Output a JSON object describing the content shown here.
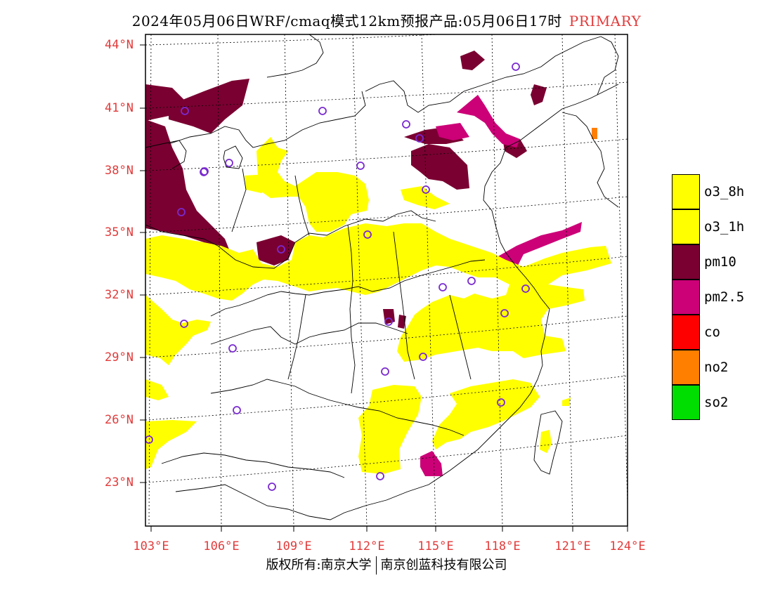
{
  "header": {
    "title": "2024年05月06日WRF/cmaq模式12km预报产品:05月06日17时",
    "tag": "PRIMARY"
  },
  "map": {
    "lat_labels": [
      "44°N",
      "41°N",
      "38°N",
      "35°N",
      "32°N",
      "29°N",
      "26°N",
      "23°N"
    ],
    "lon_labels": [
      "103°E",
      "106°E",
      "109°E",
      "112°E",
      "115°E",
      "118°E",
      "121°E",
      "124°E"
    ]
  },
  "legend": {
    "items": [
      {
        "label": "o3_8h",
        "color": "#ffff00"
      },
      {
        "label": "o3_1h",
        "color": "#ffff00"
      },
      {
        "label": "pm10",
        "color": "#7a0031"
      },
      {
        "label": "pm2.5",
        "color": "#cc0077"
      },
      {
        "label": "co",
        "color": "#ff0000"
      },
      {
        "label": "no2",
        "color": "#ff7f00"
      },
      {
        "label": "so2",
        "color": "#00dd00"
      }
    ]
  },
  "footer": {
    "left": "版权所有:南京大学",
    "right": "南京创蓝科技有限公司"
  },
  "colors": {
    "axis_label": "#e23b3b",
    "station_marker": "#7a2ad0",
    "boundary": "#000000"
  }
}
